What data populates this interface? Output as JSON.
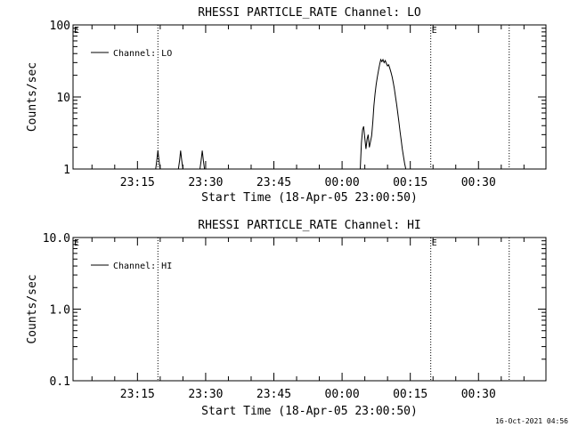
{
  "chart_data": [
    {
      "type": "line",
      "title": "RHESSI PARTICLE_RATE Channel: LO",
      "xlabel": "Start Time (18-Apr-05 23:00:50)",
      "ylabel": "Counts/sec",
      "y_scale": "log",
      "ylim": [
        1,
        100
      ],
      "y_ticks": [
        1,
        10,
        100
      ],
      "y_tick_labels": [
        "1",
        "10",
        "100"
      ],
      "xlim": [
        "23:00:50",
        "00:44:50"
      ],
      "x_tick_labels": [
        "23:15",
        "23:30",
        "23:45",
        "00:00",
        "00:15",
        "00:30"
      ],
      "legend": "Channel: LO",
      "legend_position": "top-left",
      "event_markers": [
        {
          "time": "23:19:30",
          "label": ""
        },
        {
          "time": "00:19:30",
          "label": "E"
        },
        {
          "time": "00:36:45",
          "label": ""
        }
      ],
      "corner_label": "E",
      "series": [
        {
          "name": "Channel: LO",
          "x": [
            "23:00:50",
            "23:19:00",
            "23:19:15",
            "23:19:30",
            "23:19:45",
            "23:20:00",
            "23:24:00",
            "23:24:15",
            "23:24:30",
            "23:24:45",
            "23:25:00",
            "23:28:45",
            "23:29:00",
            "23:29:15",
            "23:29:30",
            "23:29:45",
            "00:04:00",
            "00:04:15",
            "00:04:30",
            "00:04:45",
            "00:05:00",
            "00:05:15",
            "00:05:30",
            "00:05:45",
            "00:06:00",
            "00:06:15",
            "00:06:30",
            "00:06:45",
            "00:07:00",
            "00:07:15",
            "00:07:30",
            "00:07:45",
            "00:08:00",
            "00:08:15",
            "00:08:30",
            "00:08:45",
            "00:09:00",
            "00:09:15",
            "00:09:30",
            "00:09:45",
            "00:10:00",
            "00:10:15",
            "00:10:30",
            "00:10:45",
            "00:11:00",
            "00:11:15",
            "00:11:30",
            "00:11:45",
            "00:12:00",
            "00:12:15",
            "00:12:30",
            "00:12:45",
            "00:13:00",
            "00:13:15",
            "00:13:30",
            "00:13:45",
            "00:14:00",
            "00:14:15",
            "00:14:30"
          ],
          "y": [
            1,
            1,
            1.3,
            1.8,
            1.3,
            1,
            1,
            1.3,
            1.8,
            1.3,
            1,
            1,
            1.3,
            1.8,
            1.3,
            1,
            1,
            2.3,
            3.5,
            3.9,
            2.7,
            1.9,
            2.6,
            3.0,
            2.0,
            2.4,
            2.9,
            4.5,
            7.5,
            11,
            15,
            19,
            23,
            28,
            33,
            31,
            33,
            30,
            32,
            29,
            27,
            28,
            25,
            22,
            19,
            16,
            13,
            10,
            7.8,
            6.0,
            4.5,
            3.3,
            2.5,
            1.9,
            1.5,
            1.2,
            1,
            1,
            1
          ]
        }
      ]
    },
    {
      "type": "line",
      "title": "RHESSI PARTICLE_RATE Channel: HI",
      "xlabel": "Start Time (18-Apr-05 23:00:50)",
      "ylabel": "Counts/sec",
      "y_scale": "log",
      "ylim": [
        0.1,
        10
      ],
      "y_ticks": [
        0.1,
        1,
        10
      ],
      "y_tick_labels": [
        "0.1",
        "1.0",
        "10.0"
      ],
      "xlim": [
        "23:00:50",
        "00:44:50"
      ],
      "x_tick_labels": [
        "23:15",
        "23:30",
        "23:45",
        "00:00",
        "00:15",
        "00:30"
      ],
      "legend": "Channel: HI",
      "legend_position": "top-left",
      "event_markers": [
        {
          "time": "23:19:30",
          "label": ""
        },
        {
          "time": "00:19:30",
          "label": "E"
        },
        {
          "time": "00:36:45",
          "label": ""
        }
      ],
      "corner_label": "E",
      "series": [
        {
          "name": "Channel: HI",
          "x": [],
          "y": []
        }
      ]
    }
  ],
  "footer": {
    "timestamp": "16-Oct-2021 04:56"
  },
  "colors": {
    "background": "#ffffff",
    "foreground": "#000000"
  }
}
